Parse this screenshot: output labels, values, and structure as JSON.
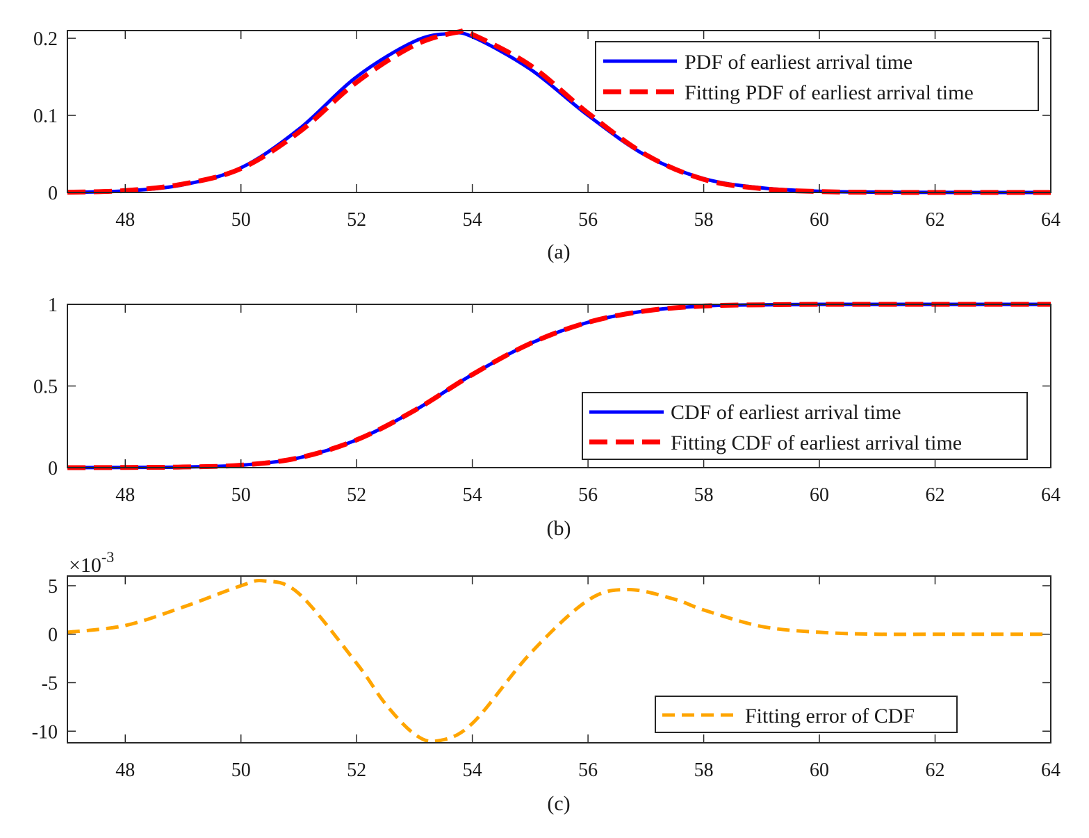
{
  "chart_data": [
    {
      "type": "line",
      "caption": "(a)",
      "xlim": [
        47,
        64
      ],
      "ylim": [
        0,
        0.21
      ],
      "x_ticks": [
        "48",
        "50",
        "52",
        "54",
        "56",
        "58",
        "60",
        "62",
        "64"
      ],
      "y_ticks": [
        "0",
        "0.1",
        "0.2"
      ],
      "x_tick_values": [
        48,
        50,
        52,
        54,
        56,
        58,
        60,
        62,
        64
      ],
      "y_tick_values": [
        0,
        0.1,
        0.2
      ],
      "legend_position": "top-right",
      "series": [
        {
          "name": "PDF of earliest arrival time",
          "color": "#0000ff",
          "style": "solid",
          "x": [
            47,
            48,
            49,
            50,
            51,
            52,
            53,
            53.6,
            54,
            55,
            56,
            57,
            58,
            59,
            60,
            61,
            62,
            63,
            64
          ],
          "y": [
            0.0003,
            0.002,
            0.01,
            0.032,
            0.082,
            0.15,
            0.196,
            0.206,
            0.202,
            0.16,
            0.1,
            0.048,
            0.018,
            0.006,
            0.0016,
            0.0004,
            0.0001,
            0,
            0
          ]
        },
        {
          "name": "Fitting PDF of earliest arrival time",
          "color": "#ff0000",
          "style": "dashed",
          "x": [
            47,
            48,
            49,
            50,
            51,
            52,
            53,
            53.75,
            54,
            55,
            56,
            57,
            58,
            59,
            60,
            61,
            62,
            63,
            64
          ],
          "y": [
            0.0003,
            0.0025,
            0.011,
            0.031,
            0.078,
            0.143,
            0.191,
            0.208,
            0.205,
            0.165,
            0.103,
            0.049,
            0.017,
            0.005,
            0.0012,
            0.0002,
            0,
            0,
            0
          ]
        }
      ]
    },
    {
      "type": "line",
      "caption": "(b)",
      "xlim": [
        47,
        64
      ],
      "ylim": [
        0,
        1
      ],
      "x_ticks": [
        "48",
        "50",
        "52",
        "54",
        "56",
        "58",
        "60",
        "62",
        "64"
      ],
      "y_ticks": [
        "0",
        "0.5",
        "1"
      ],
      "x_tick_values": [
        48,
        50,
        52,
        54,
        56,
        58,
        60,
        62,
        64
      ],
      "y_tick_values": [
        0,
        0.5,
        1
      ],
      "legend_position": "bottom-right",
      "series": [
        {
          "name": "CDF of earliest arrival time",
          "color": "#0000ff",
          "style": "solid",
          "x": [
            47,
            48,
            49,
            50,
            51,
            52,
            53,
            54,
            55,
            56,
            57,
            58,
            59,
            60,
            61,
            62,
            63,
            64
          ],
          "y": [
            0,
            0.001,
            0.004,
            0.015,
            0.06,
            0.17,
            0.35,
            0.57,
            0.76,
            0.89,
            0.96,
            0.99,
            0.997,
            1,
            1,
            1,
            1,
            1
          ]
        },
        {
          "name": "Fitting CDF of earliest arrival time",
          "color": "#ff0000",
          "style": "dashed",
          "x": [
            47,
            48,
            49,
            50,
            51,
            52,
            53,
            54,
            55,
            56,
            57,
            58,
            59,
            60,
            61,
            62,
            63,
            64
          ],
          "y": [
            0,
            0.001,
            0.004,
            0.015,
            0.06,
            0.17,
            0.35,
            0.57,
            0.76,
            0.89,
            0.96,
            0.99,
            0.997,
            1,
            1,
            1,
            1,
            1
          ]
        }
      ]
    },
    {
      "type": "line",
      "caption": "(c)",
      "exponent_label": "×10",
      "exponent_power": "-3",
      "xlim": [
        47,
        64
      ],
      "ylim": [
        -11.2,
        6
      ],
      "x_ticks": [
        "48",
        "50",
        "52",
        "54",
        "56",
        "58",
        "60",
        "62",
        "64"
      ],
      "y_ticks": [
        "-10",
        "-5",
        "0",
        "5"
      ],
      "x_tick_values": [
        48,
        50,
        52,
        54,
        56,
        58,
        60,
        62,
        64
      ],
      "y_tick_values": [
        -10,
        -5,
        0,
        5
      ],
      "legend_position": "bottom-right",
      "series": [
        {
          "name": "Fitting error of CDF",
          "color": "#ffa500",
          "style": "dashed",
          "x": [
            47,
            48,
            49,
            50,
            50.4,
            51,
            52,
            52.5,
            53,
            53.4,
            54,
            55,
            56,
            56.7,
            57.5,
            58,
            59,
            60,
            61,
            62,
            63,
            63.9
          ],
          "y": [
            0.2,
            0.9,
            2.8,
            5.0,
            5.5,
            4.2,
            -3.0,
            -7.2,
            -10.3,
            -11.0,
            -9.2,
            -2.0,
            3.5,
            4.6,
            3.6,
            2.5,
            0.8,
            0.2,
            0,
            0,
            0,
            0
          ]
        }
      ]
    }
  ]
}
